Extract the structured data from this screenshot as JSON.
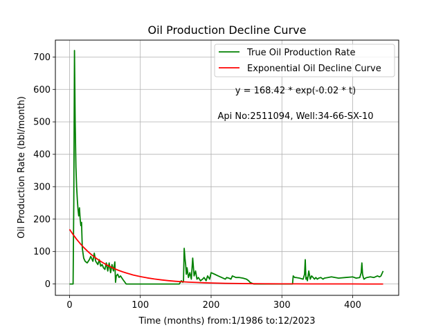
{
  "chart_data": {
    "type": "line",
    "title": "Oil Production Decline Curve",
    "xlabel": "Time (months) from:1/1986 to:12/2023",
    "ylabel": "Oil Production Rate (bbl/month)",
    "xlim": [
      -20,
      465
    ],
    "ylim": [
      -35,
      752
    ],
    "xticks": [
      0,
      100,
      200,
      300,
      400
    ],
    "yticks": [
      0,
      100,
      200,
      300,
      400,
      500,
      600,
      700
    ],
    "grid": true,
    "legend_position": "top-right",
    "annotations": [
      "y = 168.42 * exp(-0.02 * t)",
      "Api No:2511094, Well:34-66-SX-10"
    ],
    "series": [
      {
        "name": "True Oil Production Rate",
        "color": "#008000",
        "x": [
          0,
          5,
          6,
          7,
          8,
          9,
          10,
          11,
          12,
          13,
          14,
          15,
          16,
          17,
          18,
          20,
          22,
          25,
          28,
          30,
          33,
          35,
          37,
          40,
          42,
          44,
          46,
          48,
          50,
          52,
          54,
          56,
          58,
          60,
          62,
          64,
          65,
          66,
          68,
          70,
          72,
          75,
          80,
          85,
          90,
          95,
          100,
          110,
          120,
          130,
          140,
          150,
          155,
          158,
          160,
          161,
          162,
          163,
          164,
          165,
          166,
          168,
          170,
          172,
          174,
          176,
          178,
          180,
          182,
          185,
          188,
          190,
          193,
          195,
          198,
          200,
          205,
          210,
          215,
          220,
          222,
          225,
          228,
          230,
          235,
          240,
          245,
          250,
          253,
          255,
          257,
          260,
          270,
          280,
          290,
          300,
          310,
          315,
          316,
          318,
          320,
          325,
          330,
          332,
          333,
          334,
          335,
          336,
          338,
          340,
          342,
          344,
          346,
          348,
          350,
          352,
          355,
          358,
          360,
          365,
          370,
          380,
          390,
          400,
          405,
          410,
          412,
          413,
          414,
          415,
          416,
          418,
          420,
          425,
          430,
          435,
          438,
          440,
          443
        ],
        "y": [
          0,
          0,
          250,
          720,
          500,
          360,
          300,
          260,
          230,
          210,
          235,
          200,
          180,
          190,
          110,
          80,
          70,
          65,
          75,
          85,
          70,
          95,
          70,
          60,
          75,
          55,
          60,
          50,
          45,
          65,
          40,
          65,
          35,
          60,
          40,
          68,
          5,
          25,
          30,
          20,
          25,
          15,
          0,
          0,
          0,
          0,
          0,
          0,
          0,
          0,
          0,
          0,
          0,
          10,
          5,
          10,
          110,
          80,
          60,
          30,
          50,
          20,
          35,
          15,
          80,
          25,
          40,
          15,
          20,
          10,
          15,
          20,
          10,
          25,
          15,
          35,
          30,
          25,
          20,
          15,
          20,
          18,
          15,
          25,
          20,
          20,
          18,
          15,
          10,
          5,
          3,
          0,
          0,
          0,
          0,
          0,
          0,
          0,
          25,
          20,
          20,
          18,
          15,
          30,
          75,
          15,
          20,
          10,
          40,
          15,
          25,
          20,
          15,
          20,
          15,
          18,
          20,
          15,
          18,
          20,
          22,
          18,
          20,
          22,
          18,
          20,
          35,
          65,
          30,
          20,
          15,
          18,
          20,
          22,
          20,
          25,
          22,
          25,
          40
        ]
      },
      {
        "name": "Exponential Oil Decline Curve",
        "color": "#ff0000",
        "x": [
          0,
          5,
          10,
          15,
          20,
          25,
          30,
          35,
          40,
          45,
          50,
          55,
          60,
          65,
          70,
          75,
          80,
          90,
          100,
          110,
          120,
          130,
          140,
          150,
          160,
          170,
          180,
          190,
          200,
          220,
          240,
          260,
          280,
          300,
          320,
          340,
          360,
          380,
          400,
          420,
          440,
          443
        ],
        "y": [
          168.4,
          152.4,
          137.9,
          124.8,
          112.9,
          102.1,
          92.4,
          83.6,
          75.7,
          68.5,
          62.0,
          56.1,
          50.7,
          45.9,
          41.5,
          37.6,
          34.0,
          27.8,
          22.8,
          18.7,
          15.3,
          12.5,
          10.2,
          8.4,
          6.9,
          5.6,
          4.6,
          3.8,
          3.1,
          2.1,
          1.4,
          0.9,
          0.6,
          0.4,
          0.3,
          0.2,
          0.1,
          0.1,
          0.1,
          0.0,
          0.0,
          0.0
        ]
      }
    ]
  }
}
